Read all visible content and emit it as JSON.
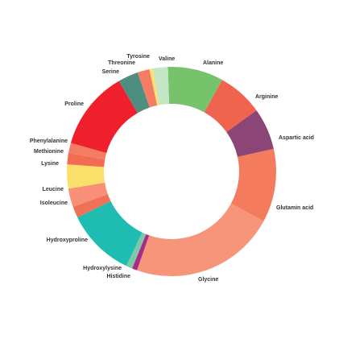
{
  "chart_data": {
    "type": "pie",
    "variant": "donut",
    "title": "",
    "legend": "none",
    "slices": [
      {
        "name": "Alanine",
        "value": 8.8,
        "color": "#77c36b"
      },
      {
        "name": "Arginine",
        "value": 7.2,
        "color": "#f0644f"
      },
      {
        "name": "Aspartic acid",
        "value": 6.6,
        "color": "#8b4577"
      },
      {
        "name": "Glutamin acid",
        "value": 11.6,
        "color": "#f47b5e"
      },
      {
        "name": "Glycine",
        "value": 23.0,
        "color": "#f7957b"
      },
      {
        "name": "Histidine",
        "value": 0.8,
        "color": "#a72a88"
      },
      {
        "name": "Hydroxylysine",
        "value": 1.0,
        "color": "#7ec8a8"
      },
      {
        "name": "Hydroxyproline",
        "value": 10.9,
        "color": "#1ebcb1"
      },
      {
        "name": "Isoleucine",
        "value": 1.8,
        "color": "#ef7158"
      },
      {
        "name": "Leucine",
        "value": 2.9,
        "color": "#f88f76"
      },
      {
        "name": "Lysine",
        "value": 3.8,
        "color": "#fadf6b"
      },
      {
        "name": "Methionine",
        "value": 1.8,
        "color": "#f36b52"
      },
      {
        "name": "Phenylalanine",
        "value": 1.6,
        "color": "#f47c63"
      },
      {
        "name": "Proline",
        "value": 12.5,
        "color": "#ef1f2c"
      },
      {
        "name": "Serine",
        "value": 3.2,
        "color": "#4e8e80"
      },
      {
        "name": "Threonine",
        "value": 1.9,
        "color": "#f47c63"
      },
      {
        "name": "Tyrosine",
        "value": 0.5,
        "color": "#fde16c"
      },
      {
        "name": "Valine",
        "value": 2.4,
        "color": "#c5e6c4"
      }
    ]
  }
}
